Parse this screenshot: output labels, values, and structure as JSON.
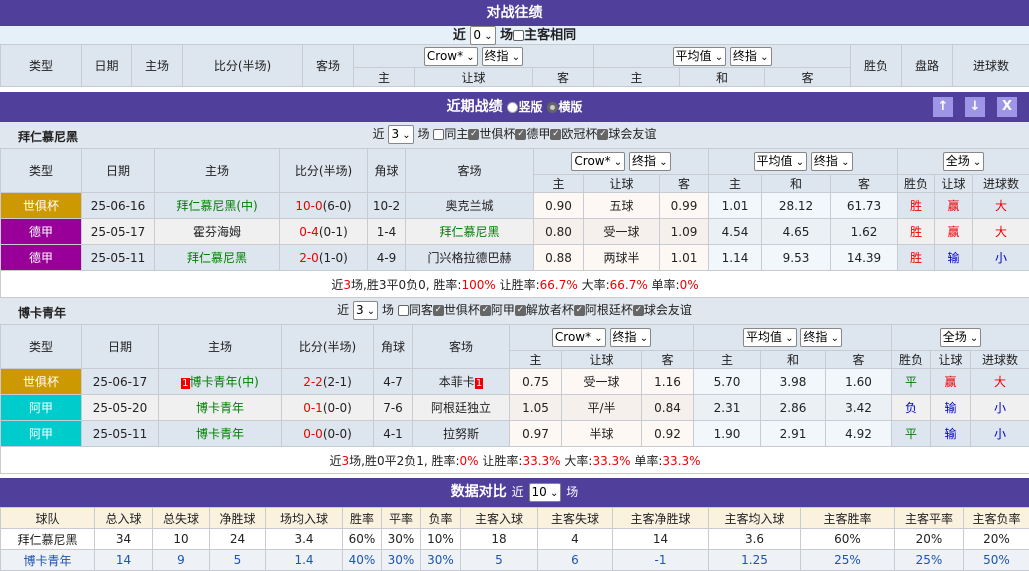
{
  "h2h": {
    "title": "对战往绩",
    "near": "近",
    "count": "0",
    "games": "场",
    "same_label": "主客相同",
    "headers": [
      "类型",
      "日期",
      "主场",
      "比分(半场)",
      "客场",
      "胜负",
      "盘路",
      "进球数"
    ],
    "crow": "Crow*",
    "final": "终指",
    "avg": "平均值",
    "sub": [
      "主",
      "让球",
      "客",
      "主",
      "和",
      "客"
    ]
  },
  "recent": {
    "title": "近期战绩",
    "opt_vertical": "竖版",
    "opt_horizontal": "横版",
    "selected": "横版",
    "buttons": {
      "up": "↑",
      "down": "↓",
      "close": "X"
    }
  },
  "colhdr": {
    "type": "类型",
    "date": "日期",
    "home": "主场",
    "score": "比分(半场)",
    "corner": "角球",
    "away": "客场",
    "crow": "Crow*",
    "final": "终指",
    "avg": "平均值",
    "final2": "终指",
    "full": "全场",
    "sub": [
      "主",
      "让球",
      "客",
      "主",
      "和",
      "客",
      "胜负",
      "让球",
      "进球数"
    ]
  },
  "teams": [
    {
      "name": "拜仁慕尼黑",
      "near": "近",
      "count": "3",
      "games": "场",
      "filters": [
        {
          "label": "同主",
          "checked": false
        },
        {
          "label": "世俱杯",
          "checked": true
        },
        {
          "label": "德甲",
          "checked": true
        },
        {
          "label": "欧冠杯",
          "checked": true
        },
        {
          "label": "球会友谊",
          "checked": true
        }
      ],
      "rows": [
        {
          "type": "世俱杯",
          "color": "#cc9900",
          "date": "25-06-16",
          "home": "拜仁慕尼黑(中)",
          "home_hl": true,
          "score": "10-0",
          "ht": "(6-0)",
          "corner": "10-2",
          "away": "奥克兰城",
          "away_hl": false,
          "c_home": "0.90",
          "c_line": "五球",
          "c_away": "0.99",
          "a_home": "1.01",
          "a_draw": "28.12",
          "a_away": "61.73",
          "result": "胜",
          "handicap": "赢",
          "goals": "大"
        },
        {
          "type": "德甲",
          "color": "#990099",
          "date": "25-05-17",
          "home": "霍芬海姆",
          "home_hl": false,
          "score": "0-4",
          "ht": "(0-1)",
          "corner": "1-4",
          "away": "拜仁慕尼黑",
          "away_hl": true,
          "c_home": "0.80",
          "c_line": "受一球",
          "c_away": "1.09",
          "a_home": "4.54",
          "a_draw": "4.65",
          "a_away": "1.62",
          "result": "胜",
          "handicap": "赢",
          "goals": "大"
        },
        {
          "type": "德甲",
          "color": "#990099",
          "date": "25-05-11",
          "home": "拜仁慕尼黑",
          "home_hl": true,
          "score": "2-0",
          "ht": "(1-0)",
          "corner": "4-9",
          "away": "门兴格拉德巴赫",
          "away_hl": false,
          "c_home": "0.88",
          "c_line": "两球半",
          "c_away": "1.01",
          "a_home": "1.14",
          "a_draw": "9.53",
          "a_away": "14.39",
          "result": "胜",
          "handicap": "输",
          "goals": "小"
        }
      ],
      "summary": {
        "a": "近",
        "n": "3",
        "b": "场,胜3平0负0, 胜率:",
        "win": "100%",
        "c": " 让胜率:",
        "hwin": "66.7%",
        "d": " 大率:",
        "big": "66.7%",
        "e": " 单率:",
        "odd": "0%"
      }
    },
    {
      "name": "博卡青年",
      "near": "近",
      "count": "3",
      "games": "场",
      "filters": [
        {
          "label": "同客",
          "checked": false
        },
        {
          "label": "世俱杯",
          "checked": true
        },
        {
          "label": "阿甲",
          "checked": true
        },
        {
          "label": "解放者杯",
          "checked": true
        },
        {
          "label": "阿根廷杯",
          "checked": true
        },
        {
          "label": "球会友谊",
          "checked": true
        }
      ],
      "rows": [
        {
          "type": "世俱杯",
          "color": "#cc9900",
          "date": "25-06-17",
          "home": "博卡青年(中)",
          "home_hl": true,
          "home_rc": "1",
          "score": "2-2",
          "ht": "(2-1)",
          "corner": "4-7",
          "away": "本菲卡",
          "away_hl": false,
          "away_rc": "1",
          "c_home": "0.75",
          "c_line": "受一球",
          "c_away": "1.16",
          "a_home": "5.70",
          "a_draw": "3.98",
          "a_away": "1.60",
          "result": "平",
          "handicap": "赢",
          "goals": "大"
        },
        {
          "type": "阿甲",
          "color": "#00cccc",
          "date": "25-05-20",
          "home": "博卡青年",
          "home_hl": true,
          "score": "0-1",
          "ht": "(0-0)",
          "corner": "7-6",
          "away": "阿根廷独立",
          "away_hl": false,
          "c_home": "1.05",
          "c_line": "平/半",
          "c_away": "0.84",
          "a_home": "2.31",
          "a_draw": "2.86",
          "a_away": "3.42",
          "result": "负",
          "handicap": "输",
          "goals": "小"
        },
        {
          "type": "阿甲",
          "color": "#00cccc",
          "date": "25-05-11",
          "home": "博卡青年",
          "home_hl": true,
          "score": "0-0",
          "ht": "(0-0)",
          "corner": "4-1",
          "away": "拉努斯",
          "away_hl": false,
          "c_home": "0.97",
          "c_line": "半球",
          "c_away": "0.92",
          "a_home": "1.90",
          "a_draw": "2.91",
          "a_away": "4.92",
          "result": "平",
          "handicap": "输",
          "goals": "小"
        }
      ],
      "summary": {
        "a": "近",
        "n": "3",
        "b": "场,胜0平2负1, 胜率:",
        "win": "0%",
        "c": " 让胜率:",
        "hwin": "33.3%",
        "d": " 大率:",
        "big": "33.3%",
        "e": " 单率:",
        "odd": "33.3%"
      }
    }
  ],
  "compare": {
    "title": "数据对比",
    "near": "近",
    "count": "10",
    "games": "场",
    "headers": [
      "球队",
      "总入球",
      "总失球",
      "净胜球",
      "场均入球",
      "胜率",
      "平率",
      "负率",
      "主客入球",
      "主客失球",
      "主客净胜球",
      "主客均入球",
      "主客胜率",
      "主客平率",
      "主客负率"
    ],
    "rows": [
      [
        "拜仁慕尼黑",
        "34",
        "10",
        "24",
        "3.4",
        "60%",
        "30%",
        "10%",
        "18",
        "4",
        "14",
        "3.6",
        "60%",
        "20%",
        "20%"
      ],
      [
        "博卡青年",
        "14",
        "9",
        "5",
        "1.4",
        "40%",
        "30%",
        "30%",
        "5",
        "6",
        "-1",
        "1.25",
        "25%",
        "25%",
        "50%"
      ]
    ]
  },
  "colors": {
    "header_bar": "#513f9c",
    "win": "#ee0000",
    "draw": "#008000",
    "loss": "#0000cc"
  }
}
